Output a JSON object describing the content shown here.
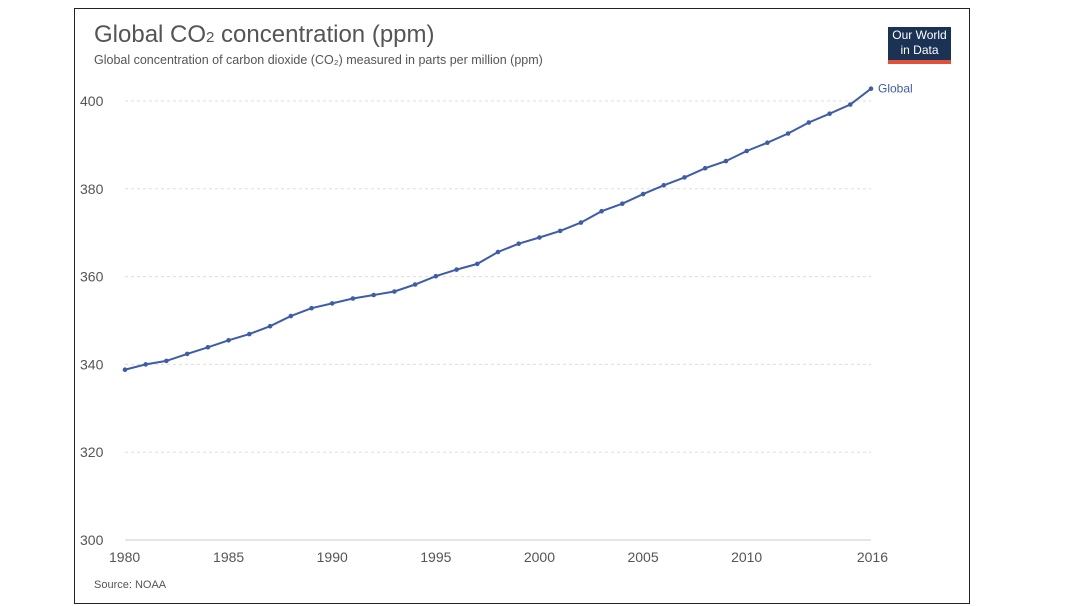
{
  "header": {
    "title_prefix": "Global CO",
    "title_sub": "2",
    "title_suffix": " concentration (ppm)",
    "subtitle": "Global concentration of carbon dioxide (CO₂) measured in parts per million (ppm)"
  },
  "logo": {
    "line1": "Our World",
    "line2": "in Data",
    "bg_color": "#1a3254",
    "accent_color": "#e0513c"
  },
  "footer": {
    "source": "Source: NOAA"
  },
  "chart_data": {
    "type": "line",
    "title": "Global CO₂ concentration (ppm)",
    "subtitle": "Global concentration of carbon dioxide (CO₂) measured in parts per million (ppm)",
    "xlabel": "",
    "ylabel": "",
    "xlim": [
      1980,
      2016
    ],
    "ylim": [
      300,
      400
    ],
    "yticks": [
      300,
      320,
      340,
      360,
      380,
      400
    ],
    "xticks": [
      1980,
      1985,
      1990,
      1995,
      2000,
      2005,
      2010,
      2016
    ],
    "grid": true,
    "series": [
      {
        "name": "Global",
        "color": "#3d5da8",
        "x": [
          1980,
          1981,
          1982,
          1983,
          1984,
          1985,
          1986,
          1987,
          1988,
          1989,
          1990,
          1991,
          1992,
          1993,
          1994,
          1995,
          1996,
          1997,
          1998,
          1999,
          2000,
          2001,
          2002,
          2003,
          2004,
          2005,
          2006,
          2007,
          2008,
          2009,
          2010,
          2011,
          2012,
          2013,
          2014,
          2015,
          2016
        ],
        "values": [
          338.8,
          340.0,
          340.8,
          342.4,
          343.9,
          345.5,
          346.9,
          348.7,
          351.0,
          352.8,
          353.9,
          355.0,
          355.8,
          356.6,
          358.2,
          360.1,
          361.6,
          362.9,
          365.6,
          367.5,
          368.9,
          370.4,
          372.3,
          374.9,
          376.6,
          378.8,
          380.8,
          382.6,
          384.7,
          386.3,
          388.6,
          390.5,
          392.6,
          395.1,
          397.1,
          399.2,
          402.8
        ]
      }
    ],
    "source": "Source: NOAA"
  }
}
